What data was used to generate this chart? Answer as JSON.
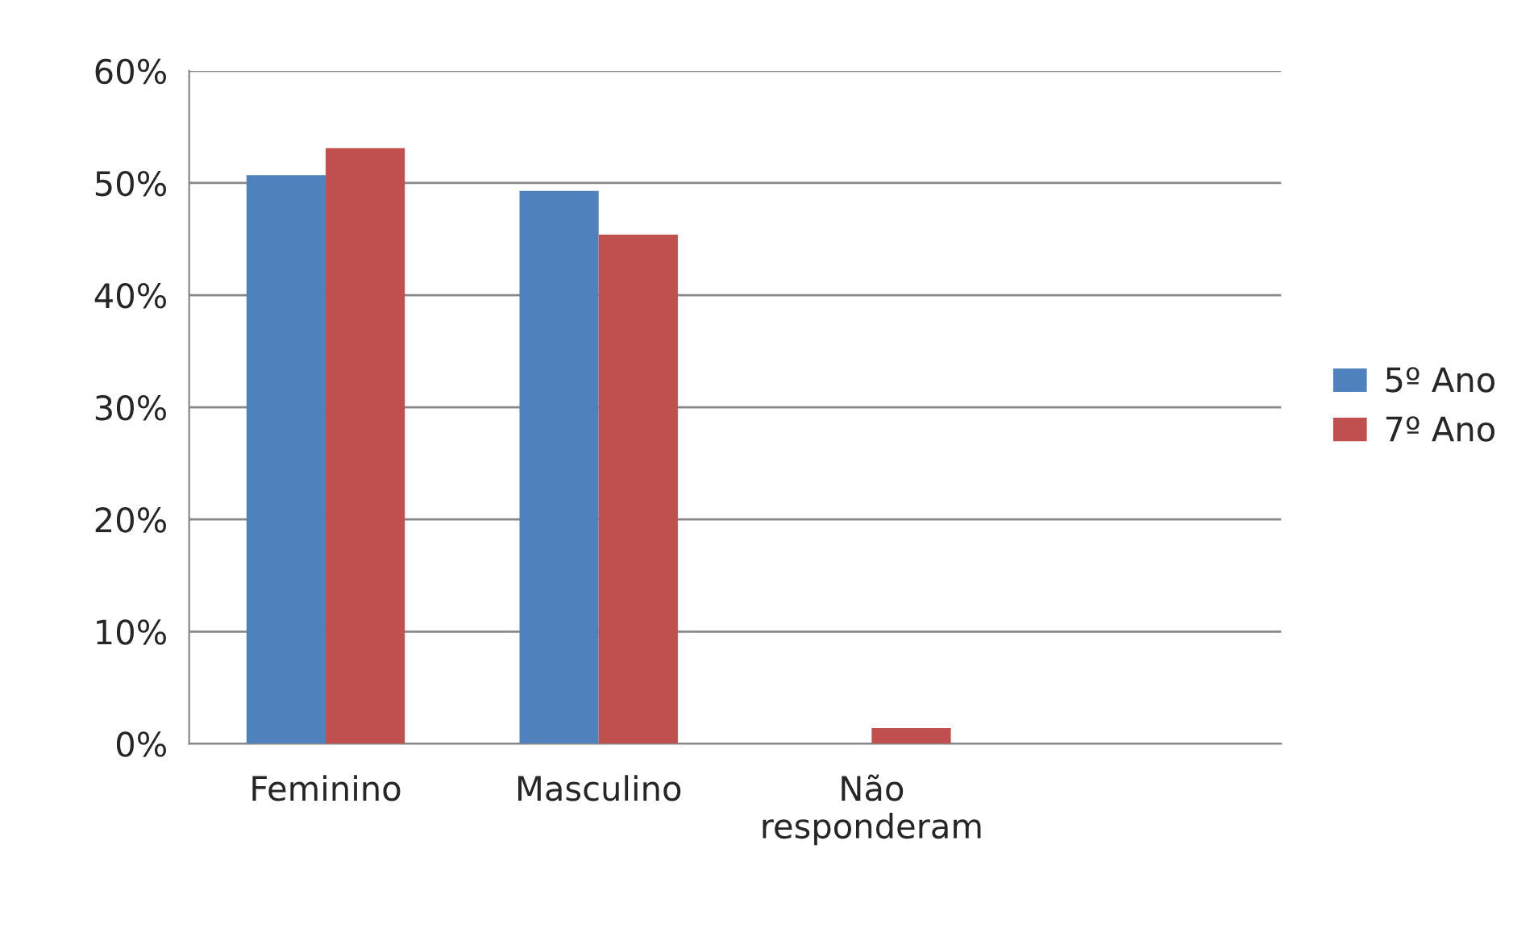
{
  "chart_data": {
    "type": "bar",
    "categories": [
      "Feminino",
      "Masculino",
      "Não\nresponderam",
      null
    ],
    "series": [
      {
        "name": "5º Ano",
        "color": "#4f81bd",
        "values": [
          50.7,
          49.3,
          null,
          null
        ]
      },
      {
        "name": "7º Ano",
        "color": "#c0504d",
        "values": [
          53.1,
          45.4,
          1.4,
          null
        ]
      }
    ],
    "ylim": [
      0,
      60
    ],
    "yticks": [
      {
        "value": 0,
        "label": "0%"
      },
      {
        "value": 10,
        "label": "10%"
      },
      {
        "value": 20,
        "label": "20%"
      },
      {
        "value": 30,
        "label": "30%"
      },
      {
        "value": 40,
        "label": "40%"
      },
      {
        "value": 50,
        "label": "50%"
      },
      {
        "value": 60,
        "label": "60%"
      }
    ],
    "grid": "y",
    "legend": "right"
  }
}
